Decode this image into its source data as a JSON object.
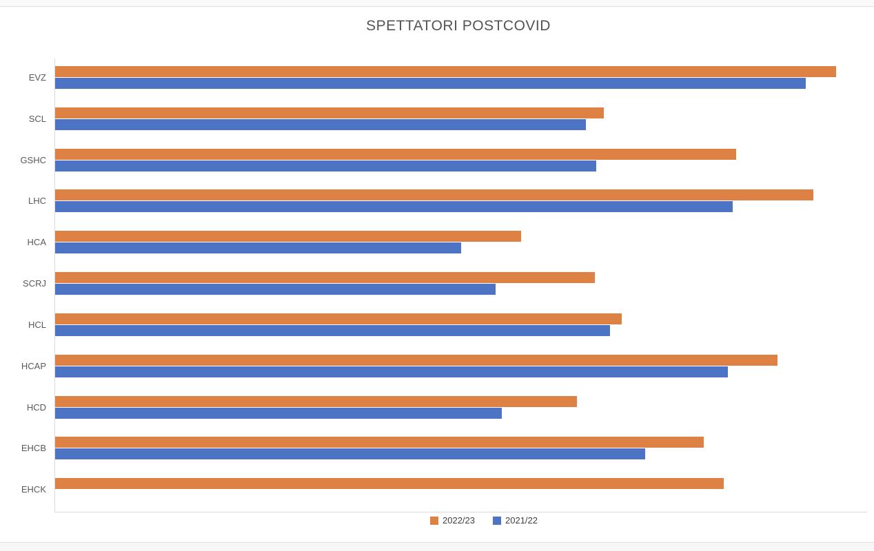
{
  "page": {
    "title": "SPETTATORI POSTCOVID"
  },
  "chart_data": {
    "type": "bar",
    "orientation": "horizontal",
    "title": "SPETTATORI POSTCOVID",
    "categories": [
      "EVZ",
      "SCL",
      "GSHC",
      "LHC",
      "HCA",
      "SCRJ",
      "HCL",
      "HCAP",
      "HCD",
      "EHCB",
      "EHCK"
    ],
    "series": [
      {
        "name": "2022/23",
        "color": "#DD8145",
        "values": [
          100,
          70.3,
          87.2,
          97.1,
          59.7,
          69.1,
          72.6,
          92.5,
          66.8,
          83.1,
          85.6
        ]
      },
      {
        "name": "2021/22",
        "color": "#4D74C4",
        "values": [
          96.1,
          68.0,
          69.3,
          86.8,
          52.0,
          56.4,
          71.1,
          86.2,
          57.2,
          75.6,
          0
        ]
      }
    ],
    "xlabel": "",
    "ylabel": "",
    "value_axis": {
      "min": 0,
      "max": 104,
      "tick_labels_visible": false,
      "note": "axis unlabeled in source; values estimated as percent of longest bar (EVZ 2022/23 = 100)"
    },
    "grid": "off",
    "legend": {
      "position": "bottom"
    }
  }
}
